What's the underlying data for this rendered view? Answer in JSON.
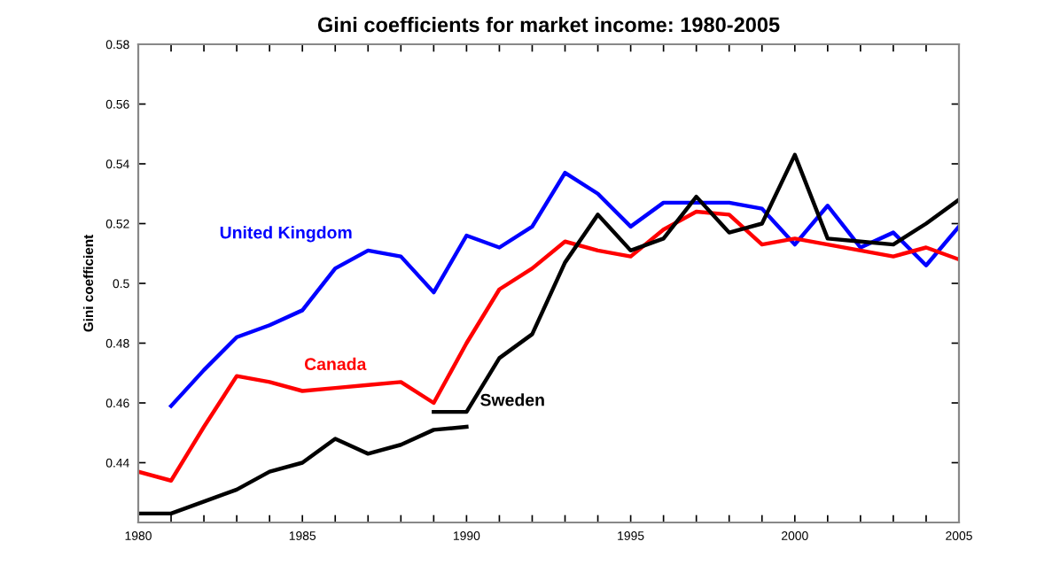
{
  "chart_data": {
    "type": "line",
    "title": "Gini coefficients for market income: 1980-2005",
    "ylabel": "Gini coefficient",
    "xlim": [
      1980,
      2005
    ],
    "xticks": [
      1980,
      {
        "value": 1981,
        "label": null
      },
      {
        "value": 1982,
        "label": null
      },
      {
        "value": 1983,
        "label": null
      },
      {
        "value": 1984,
        "label": null
      },
      1985,
      {
        "value": 1986,
        "label": null
      },
      {
        "value": 1987,
        "label": null
      },
      {
        "value": 1988,
        "label": null
      },
      {
        "value": 1989,
        "label": null
      },
      1990,
      {
        "value": 1991,
        "label": null
      },
      {
        "value": 1992,
        "label": null
      },
      {
        "value": 1993,
        "label": null
      },
      {
        "value": 1994,
        "label": null
      },
      1995,
      {
        "value": 1996,
        "label": null
      },
      {
        "value": 1997,
        "label": null
      },
      {
        "value": 1998,
        "label": null
      },
      {
        "value": 1999,
        "label": null
      },
      2000,
      {
        "value": 2001,
        "label": null
      },
      {
        "value": 2002,
        "label": null
      },
      {
        "value": 2003,
        "label": null
      },
      {
        "value": 2004,
        "label": null
      },
      2005
    ],
    "ylim": [
      0.42,
      0.58
    ],
    "yticks": [
      0.44,
      0.46,
      0.48,
      0.5,
      0.52,
      0.54,
      0.56,
      0.58
    ],
    "grid": false,
    "legend": false,
    "marker": "none",
    "line_style": "solid",
    "series": [
      {
        "name": "United Kingdom",
        "color": "#0000ff",
        "x": [
          1981,
          1982,
          1983,
          1984,
          1985,
          1986,
          1987,
          1988,
          1989,
          1990,
          1991,
          1992,
          1993,
          1994,
          1995,
          1996,
          1997,
          1998,
          1999,
          2000,
          2001,
          2002,
          2003,
          2004,
          2005
        ],
        "values": [
          0.459,
          0.471,
          0.482,
          0.486,
          0.491,
          0.505,
          0.511,
          0.509,
          0.497,
          0.516,
          0.512,
          0.519,
          0.537,
          0.53,
          0.519,
          0.527,
          0.527,
          0.527,
          0.525,
          0.513,
          0.526,
          0.512,
          0.517,
          0.506,
          0.519
        ]
      },
      {
        "name": "Canada",
        "color": "#ff0000",
        "x": [
          1980,
          1981,
          1982,
          1983,
          1984,
          1985,
          1986,
          1987,
          1988,
          1989,
          1990,
          1991,
          1992,
          1993,
          1994,
          1995,
          1996,
          1997,
          1998,
          1999,
          2000,
          2001,
          2002,
          2003,
          2004,
          2005
        ],
        "values": [
          0.437,
          0.434,
          0.452,
          0.469,
          0.467,
          0.464,
          0.465,
          0.466,
          0.467,
          0.46,
          0.48,
          0.498,
          0.505,
          0.514,
          0.511,
          0.509,
          0.518,
          0.524,
          0.523,
          0.513,
          0.515,
          0.513,
          0.511,
          0.509,
          0.512,
          0.508
        ]
      },
      {
        "color": "#000000",
        "x": [
          1980,
          1981,
          1982,
          1983,
          1984,
          1985,
          1986,
          1987,
          1988,
          1989,
          1990
        ],
        "values": [
          0.423,
          0.423,
          0.427,
          0.431,
          0.437,
          0.44,
          0.448,
          0.443,
          0.446,
          0.451,
          0.452
        ]
      },
      {
        "name": "Sweden",
        "color": "#000000",
        "x": [
          1989,
          1990,
          1991,
          1992,
          1993,
          1994,
          1995,
          1996,
          1997,
          1998,
          1999,
          2000,
          2001,
          2002,
          2003,
          2004,
          2005
        ],
        "values": [
          0.457,
          0.457,
          0.475,
          0.483,
          0.507,
          0.523,
          0.511,
          0.515,
          0.529,
          0.517,
          0.52,
          0.543,
          0.515,
          0.514,
          0.513,
          0.52,
          0.528
        ]
      }
    ]
  }
}
